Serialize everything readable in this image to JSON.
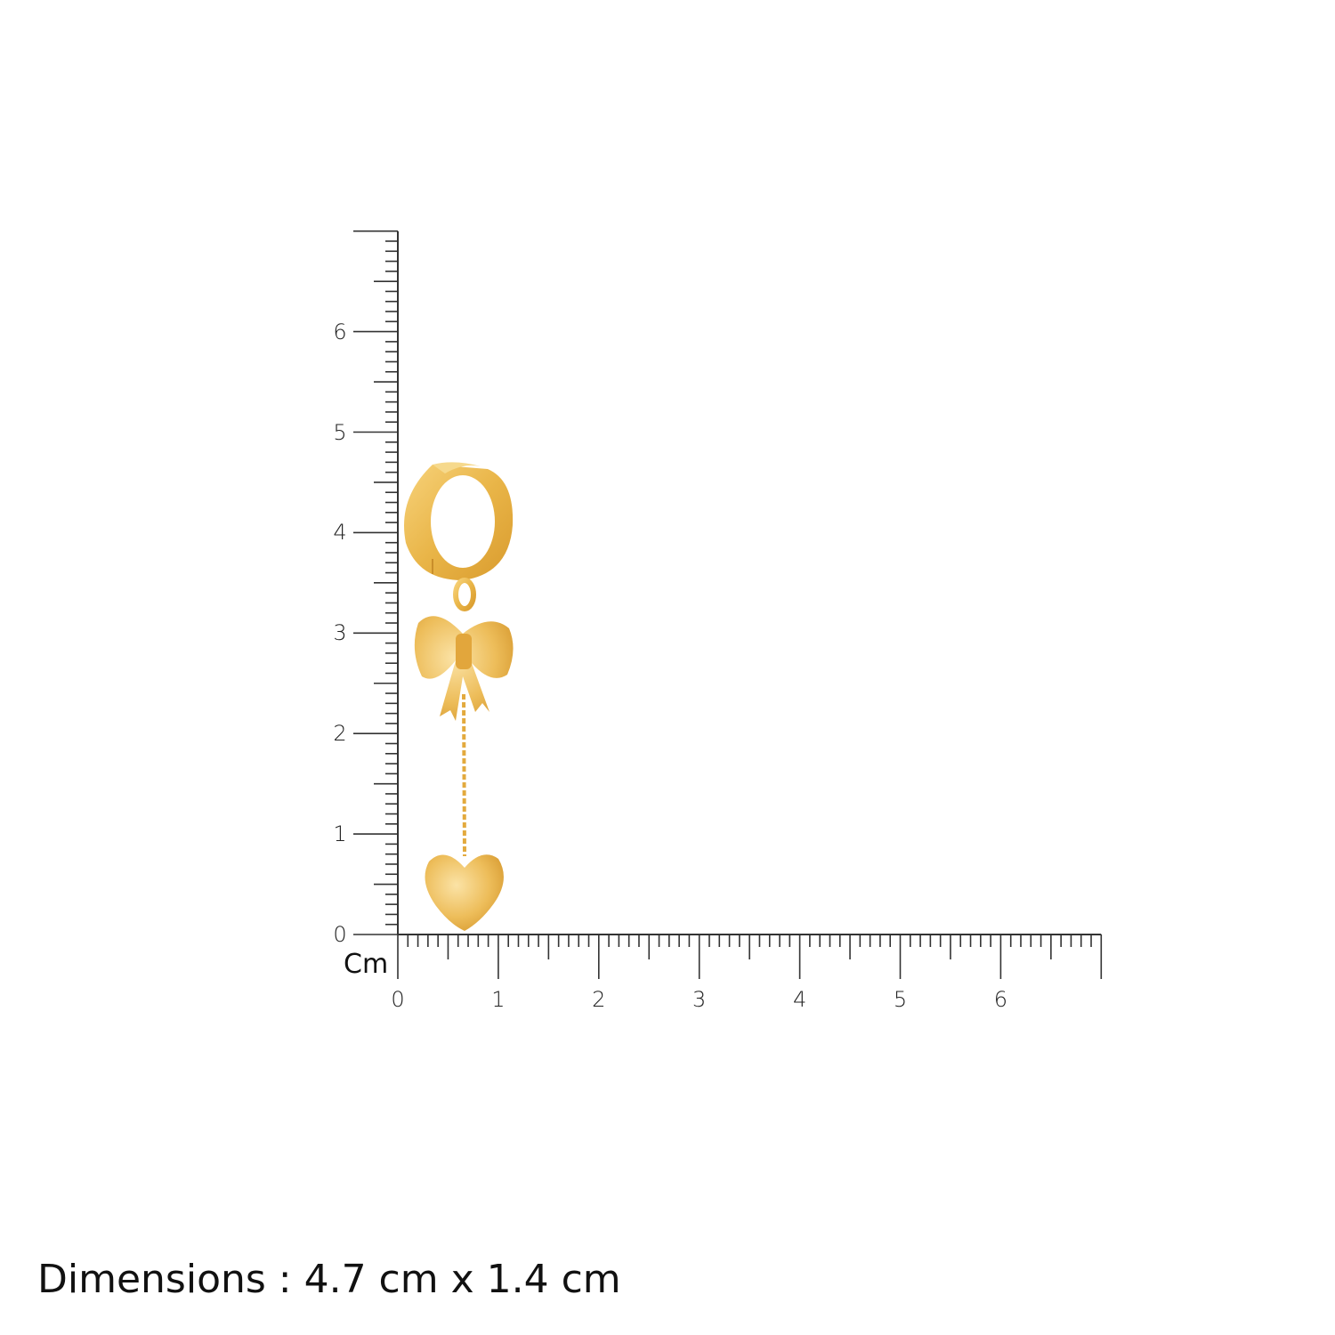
{
  "ruler": {
    "unit": "Cm",
    "vertical_labels": [
      "0",
      "1",
      "2",
      "3",
      "4",
      "5",
      "6"
    ],
    "horizontal_labels": [
      "0",
      "1",
      "2",
      "3",
      "4",
      "5",
      "6"
    ],
    "max_cm": 7,
    "minor_step_mm": 1,
    "line_color": "#333333"
  },
  "product": {
    "type": "hoop earring with bow and heart charm",
    "metal_color": "#E8B64A"
  },
  "caption": "Dimensions : 4.7 cm x 1.4 cm"
}
